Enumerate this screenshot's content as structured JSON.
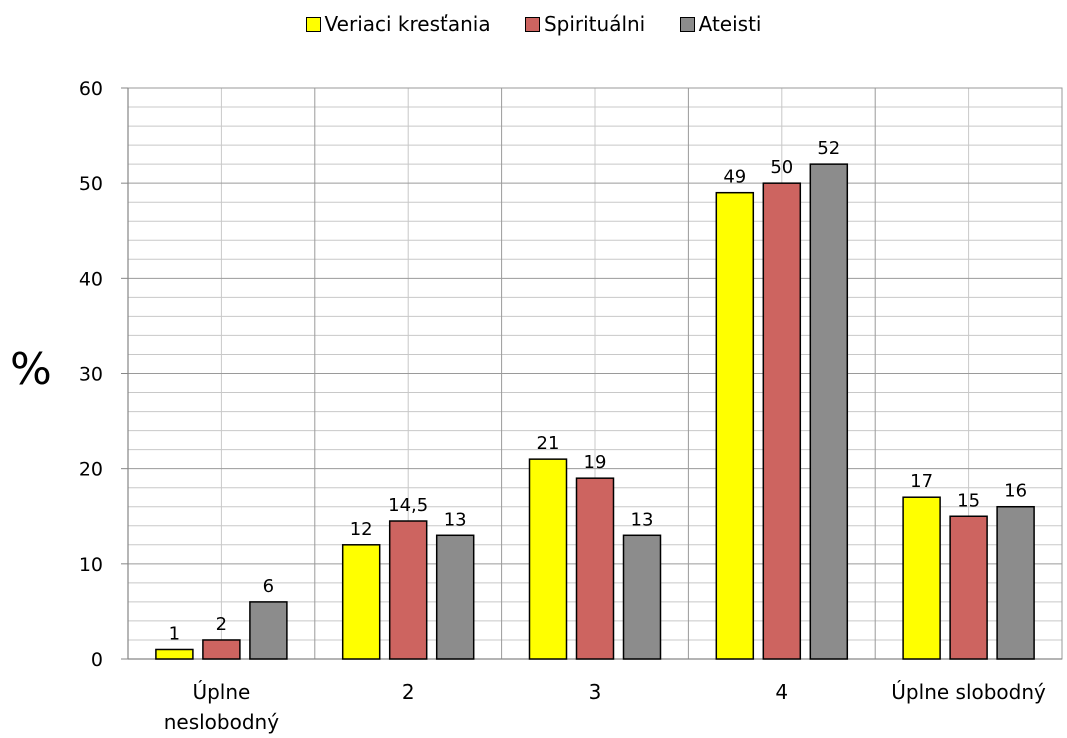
{
  "chart_data": {
    "type": "bar",
    "categories": [
      "Úplne neslobodný",
      "2",
      "3",
      "4",
      "Úplne slobodný"
    ],
    "series": [
      {
        "name": "Veriaci kresťania",
        "color": "#ffff00",
        "values": [
          1,
          12,
          21,
          49,
          17
        ],
        "labels": [
          "1",
          "12",
          "21",
          "49",
          "17"
        ]
      },
      {
        "name": "Spirituálni",
        "color": "#cd6460",
        "values": [
          2,
          14.5,
          19,
          50,
          15
        ],
        "labels": [
          "2",
          "14,5",
          "19",
          "50",
          "15"
        ]
      },
      {
        "name": "Ateisti",
        "color": "#8c8c8c",
        "values": [
          6,
          13,
          13,
          52,
          16
        ],
        "labels": [
          "6",
          "13",
          "13",
          "52",
          "16"
        ]
      }
    ],
    "ylabel": "%",
    "ylim": [
      0,
      60
    ],
    "yticks": [
      0,
      10,
      20,
      30,
      40,
      50,
      60
    ],
    "grid": true,
    "legend": "top-center"
  }
}
